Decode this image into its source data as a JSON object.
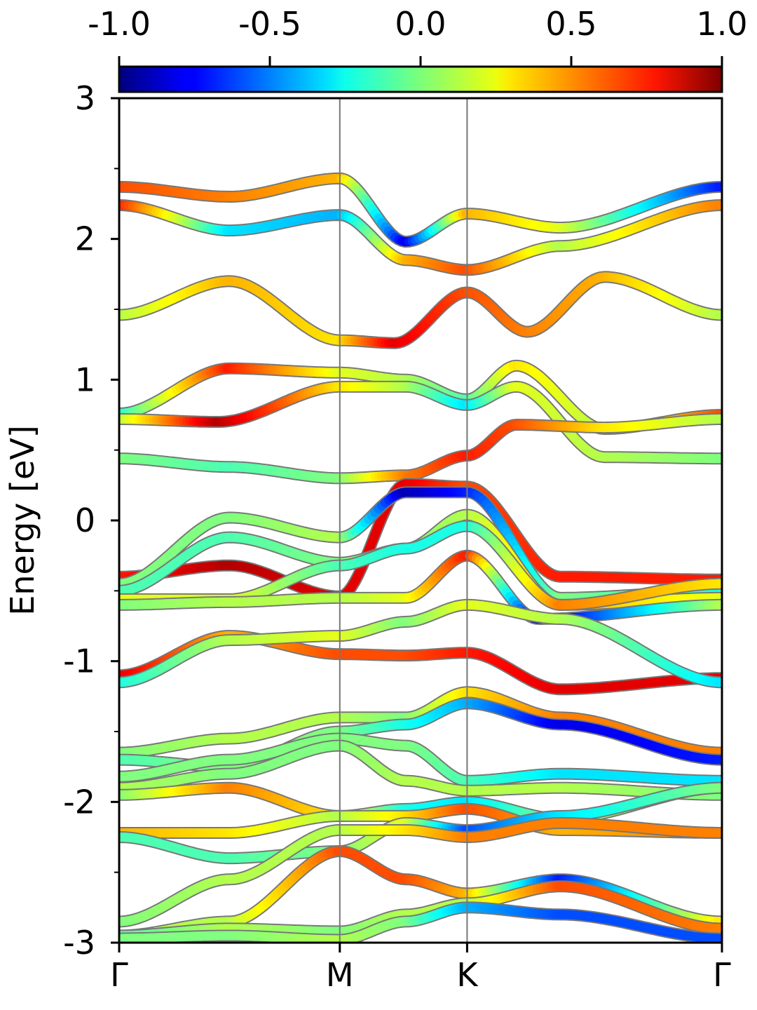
{
  "chart_data": {
    "type": "line",
    "title": "",
    "xlabel": "",
    "ylabel": "Energy [eV]",
    "ylim": [
      -3,
      3
    ],
    "yticks": [
      -3,
      -2,
      -1,
      0,
      1,
      2,
      3
    ],
    "ytick_labels": [
      "-3",
      "-2",
      "-1",
      "0",
      "1",
      "2",
      "3"
    ],
    "x_path": [
      0,
      1,
      1.577,
      2.732
    ],
    "x_path_labels": [
      "Γ",
      "M",
      "K",
      "Γ"
    ],
    "colorbar": {
      "colormap": "jet",
      "range": [
        -1.0,
        1.0
      ],
      "ticks": [
        -1.0,
        -0.5,
        0.0,
        0.5,
        1.0
      ],
      "tick_labels": [
        "-1.0",
        "-0.5",
        "0.0",
        "0.5",
        "1.0"
      ],
      "location": "top"
    },
    "grid": false,
    "series": [
      {
        "x": [
          0,
          0.5,
          1.0,
          1.3,
          1.577,
          2.0,
          2.732
        ],
        "energy": [
          2.37,
          2.3,
          2.43,
          1.98,
          2.18,
          2.08,
          2.37
        ],
        "color_value": [
          0.6,
          0.5,
          0.4,
          -0.8,
          0.4,
          0.2,
          -0.7
        ]
      },
      {
        "x": [
          0,
          0.5,
          1.0,
          1.3,
          1.577,
          2.0,
          2.732
        ],
        "energy": [
          2.24,
          2.06,
          2.17,
          1.85,
          1.78,
          1.95,
          2.24
        ],
        "color_value": [
          0.7,
          -0.3,
          -0.4,
          0.4,
          0.6,
          0.1,
          0.5
        ]
      },
      {
        "x": [
          0,
          0.5,
          1.0,
          1.25,
          1.577,
          1.85,
          2.2,
          2.732
        ],
        "energy": [
          1.46,
          1.7,
          1.28,
          1.26,
          1.62,
          1.34,
          1.73,
          1.46
        ],
        "color_value": [
          0.1,
          0.4,
          0.3,
          0.8,
          0.6,
          0.5,
          0.4,
          0.1
        ]
      },
      {
        "x": [
          0,
          0.5,
          1.0,
          1.3,
          1.577,
          1.8,
          2.2,
          2.732
        ],
        "energy": [
          0.76,
          1.08,
          1.05,
          1.0,
          0.86,
          1.1,
          0.65,
          0.75
        ],
        "color_value": [
          -0.2,
          0.7,
          0.2,
          0.1,
          -0.1,
          0.3,
          0.1,
          0.6
        ]
      },
      {
        "x": [
          0,
          0.45,
          1.0,
          1.3,
          1.577,
          1.8,
          2.2,
          2.732
        ],
        "energy": [
          0.72,
          0.7,
          0.95,
          0.95,
          0.82,
          0.95,
          0.45,
          0.44
        ],
        "color_value": [
          0.1,
          0.9,
          0.3,
          0.1,
          -0.3,
          0.2,
          0.1,
          0.0
        ]
      },
      {
        "x": [
          0,
          0.5,
          1.0,
          1.3,
          1.577,
          1.8,
          2.2,
          2.732
        ],
        "energy": [
          0.44,
          0.38,
          0.3,
          0.32,
          0.46,
          0.68,
          0.66,
          0.72
        ],
        "color_value": [
          0.0,
          -0.1,
          0.0,
          0.5,
          0.7,
          0.6,
          0.3,
          0.1
        ]
      },
      {
        "x": [
          0,
          0.5,
          1.0,
          1.3,
          1.577,
          2.0,
          2.732
        ],
        "energy": [
          -0.4,
          -0.32,
          -0.54,
          0.26,
          0.24,
          -0.4,
          -0.42
        ],
        "color_value": [
          0.7,
          0.9,
          0.8,
          0.8,
          0.6,
          0.7,
          0.7
        ]
      },
      {
        "x": [
          0,
          0.5,
          1.0,
          1.3,
          1.577,
          2.0,
          2.732
        ],
        "energy": [
          -0.45,
          0.02,
          -0.12,
          0.2,
          0.2,
          -0.55,
          -0.5
        ],
        "color_value": [
          0.0,
          0.0,
          0.1,
          -0.9,
          -0.7,
          0.0,
          -0.2
        ]
      },
      {
        "x": [
          0,
          0.5,
          1.0,
          1.3,
          1.577,
          2.0,
          2.732
        ],
        "energy": [
          -0.5,
          -0.12,
          -0.3,
          -0.2,
          0.04,
          -0.6,
          -0.55
        ],
        "color_value": [
          -0.1,
          -0.1,
          0.0,
          0.0,
          0.1,
          0.4,
          0.2
        ]
      },
      {
        "x": [
          0,
          0.5,
          1.0,
          1.3,
          1.577,
          2.0,
          2.732
        ],
        "energy": [
          -0.56,
          -0.56,
          -0.32,
          -0.2,
          -0.04,
          -0.6,
          -0.45
        ],
        "color_value": [
          0.2,
          0.2,
          -0.1,
          -0.2,
          -0.2,
          0.5,
          0.3
        ]
      },
      {
        "x": [
          0,
          0.5,
          1.0,
          1.3,
          1.577,
          1.9,
          2.732
        ],
        "energy": [
          -0.6,
          -0.58,
          -0.55,
          -0.55,
          -0.25,
          -0.7,
          -0.6
        ],
        "color_value": [
          0.0,
          0.1,
          0.1,
          0.2,
          0.7,
          -0.9,
          0.1
        ]
      },
      {
        "x": [
          0,
          0.5,
          1.0,
          1.3,
          1.577,
          2.0,
          2.732
        ],
        "energy": [
          -1.1,
          -0.82,
          -0.95,
          -0.96,
          -0.94,
          -1.2,
          -1.12
        ],
        "color_value": [
          0.8,
          0.4,
          0.6,
          0.6,
          0.7,
          0.8,
          0.8
        ]
      },
      {
        "x": [
          0,
          0.5,
          1.0,
          1.3,
          1.577,
          2.0,
          2.732
        ],
        "energy": [
          -1.15,
          -0.85,
          -0.82,
          -0.72,
          -0.6,
          -0.7,
          -1.15
        ],
        "color_value": [
          -0.2,
          0.1,
          0.2,
          0.0,
          0.2,
          0.1,
          -0.3
        ]
      },
      {
        "x": [
          0,
          0.5,
          1.0,
          1.3,
          1.577,
          2.0,
          2.732
        ],
        "energy": [
          -1.65,
          -1.55,
          -1.4,
          -1.4,
          -1.22,
          -1.4,
          -1.65
        ],
        "color_value": [
          0.0,
          0.1,
          0.1,
          0.0,
          0.3,
          0.5,
          0.5
        ]
      },
      {
        "x": [
          0,
          0.5,
          1.0,
          1.3,
          1.577,
          2.0,
          2.732
        ],
        "energy": [
          -1.7,
          -1.75,
          -1.5,
          -1.45,
          -1.3,
          -1.45,
          -1.7
        ],
        "color_value": [
          -0.1,
          0.0,
          0.0,
          -0.2,
          -0.4,
          -0.8,
          -0.7
        ]
      },
      {
        "x": [
          0,
          0.5,
          1.0,
          1.3,
          1.577,
          2.0,
          2.732
        ],
        "energy": [
          -1.82,
          -1.7,
          -1.55,
          -1.6,
          -1.85,
          -1.8,
          -1.85
        ],
        "color_value": [
          0.0,
          0.0,
          0.0,
          0.0,
          -0.1,
          -0.3,
          -0.3
        ]
      },
      {
        "x": [
          0,
          0.5,
          1.0,
          1.3,
          1.577,
          2.0,
          2.732
        ],
        "energy": [
          -1.9,
          -1.8,
          -1.6,
          -1.85,
          -1.92,
          -1.9,
          -1.95
        ],
        "color_value": [
          0.1,
          0.0,
          0.0,
          0.1,
          0.1,
          0.1,
          0.0
        ]
      },
      {
        "x": [
          0,
          0.5,
          1.0,
          1.3,
          1.577,
          2.0,
          2.732
        ],
        "energy": [
          -1.95,
          -1.9,
          -2.1,
          -2.05,
          -2.0,
          -2.12,
          -1.9
        ],
        "color_value": [
          0.0,
          0.5,
          0.3,
          -0.2,
          -0.3,
          0.0,
          0.1
        ]
      },
      {
        "x": [
          0,
          0.5,
          1.0,
          1.3,
          1.577,
          2.0,
          2.732
        ],
        "energy": [
          -2.22,
          -2.22,
          -2.1,
          -2.1,
          -2.05,
          -2.2,
          -2.22
        ],
        "color_value": [
          0.4,
          0.3,
          0.1,
          0.3,
          0.6,
          0.4,
          0.5
        ]
      },
      {
        "x": [
          0,
          0.5,
          1.0,
          1.3,
          1.577,
          2.0,
          2.732
        ],
        "energy": [
          -2.25,
          -2.4,
          -2.35,
          -2.15,
          -2.2,
          -2.1,
          -1.9
        ],
        "color_value": [
          -0.1,
          -0.1,
          0.0,
          0.2,
          -0.6,
          -0.3,
          0.0
        ]
      },
      {
        "x": [
          0,
          0.5,
          1.0,
          1.3,
          1.577,
          2.0,
          2.732
        ],
        "energy": [
          -2.85,
          -2.55,
          -2.2,
          -2.2,
          -2.25,
          -2.15,
          -2.22
        ],
        "color_value": [
          0.0,
          0.1,
          0.1,
          0.3,
          0.5,
          0.5,
          0.5
        ]
      },
      {
        "x": [
          0,
          0.5,
          1.0,
          1.3,
          1.577,
          2.0,
          2.732
        ],
        "energy": [
          -2.95,
          -2.85,
          -2.35,
          -2.55,
          -2.65,
          -2.55,
          -2.85
        ],
        "color_value": [
          0.1,
          0.1,
          0.6,
          0.6,
          0.4,
          -0.7,
          0.3
        ]
      },
      {
        "x": [
          0,
          0.5,
          1.0,
          1.3,
          1.577,
          2.0,
          2.732
        ],
        "energy": [
          -2.95,
          -2.9,
          -2.92,
          -2.8,
          -2.72,
          -2.6,
          -2.9
        ],
        "color_value": [
          -0.1,
          0.1,
          0.0,
          0.1,
          0.1,
          0.6,
          0.5
        ]
      },
      {
        "x": [
          0,
          0.5,
          1.0,
          1.3,
          1.577,
          2.0,
          2.732
        ],
        "energy": [
          -2.97,
          -2.95,
          -2.98,
          -2.85,
          -2.75,
          -2.8,
          -2.97
        ],
        "color_value": [
          0.0,
          0.0,
          0.1,
          0.0,
          -0.4,
          -0.6,
          -0.6
        ]
      }
    ]
  }
}
